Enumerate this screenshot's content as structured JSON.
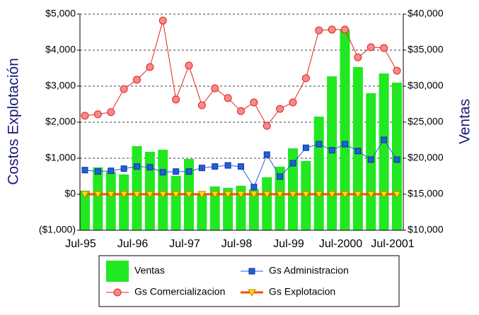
{
  "chart_data": {
    "type": "bar-line",
    "y_title": "Costos Explotación",
    "y2_title": "Ventas",
    "categories": [
      "Jul-95",
      null,
      null,
      null,
      "Jul-96",
      null,
      null,
      null,
      "Jul-97",
      null,
      null,
      null,
      "Jul-98",
      null,
      null,
      null,
      "Jul-99",
      null,
      null,
      null,
      "Jul-2000",
      null,
      null,
      null,
      "Jul-2001"
    ],
    "ylim": [
      -1000,
      5000
    ],
    "yticks": [
      {
        "value": -1000,
        "label": "($1,000)"
      },
      {
        "value": 0,
        "label": "$0"
      },
      {
        "value": 1000,
        "label": "$1,000"
      },
      {
        "value": 2000,
        "label": "$2,000"
      },
      {
        "value": 3000,
        "label": "$3,000"
      },
      {
        "value": 4000,
        "label": "$4,000"
      },
      {
        "value": 5000,
        "label": "$5,000"
      }
    ],
    "y2lim": [
      10000,
      40000
    ],
    "y2ticks": [
      {
        "value": 10000,
        "label": "$10,000"
      },
      {
        "value": 15000,
        "label": "$15,000"
      },
      {
        "value": 20000,
        "label": "$20,000"
      },
      {
        "value": 25000,
        "label": "$25,000"
      },
      {
        "value": 30000,
        "label": "$30,000"
      },
      {
        "value": 35000,
        "label": "$35,000"
      },
      {
        "value": 40000,
        "label": "$40,000"
      }
    ],
    "grid": true,
    "series": [
      {
        "name": "Ventas",
        "type": "bar",
        "axis": "y2",
        "color": "#22e822",
        "values": [
          15490,
          18730,
          18140,
          17750,
          21670,
          20880,
          21180,
          17550,
          19900,
          14900,
          16080,
          15880,
          16180,
          15690,
          17350,
          18820,
          21370,
          19610,
          25780,
          31370,
          37840,
          32650,
          29020,
          31770,
          30490
        ]
      },
      {
        "name": "Gs Administracion",
        "type": "line",
        "marker": "square",
        "color": "#1f5fd8",
        "marker_color": "#1f5fd8",
        "values": [
          670,
          630,
          650,
          710,
          770,
          750,
          610,
          630,
          630,
          730,
          770,
          800,
          770,
          200,
          1100,
          490,
          860,
          1290,
          1390,
          1220,
          1390,
          1200,
          960,
          1510,
          960
        ]
      },
      {
        "name": "Gs Comercializacion",
        "type": "line",
        "marker": "circle",
        "color": "#e82020",
        "marker_color": "#f48a8a",
        "values": [
          2180,
          2220,
          2280,
          2920,
          3180,
          3530,
          4820,
          2630,
          3570,
          2470,
          2940,
          2670,
          2310,
          2550,
          1900,
          2370,
          2550,
          3220,
          4550,
          4570,
          4570,
          3800,
          4080,
          4060,
          3430
        ]
      },
      {
        "name": "Gs Explotacion",
        "type": "line",
        "marker": "triangle",
        "color": "#ff4a00",
        "marker_color": "#ffe000",
        "values": [
          0,
          0,
          0,
          0,
          0,
          0,
          0,
          0,
          0,
          0,
          0,
          0,
          0,
          0,
          0,
          0,
          0,
          0,
          0,
          0,
          0,
          0,
          0,
          0,
          0
        ]
      }
    ]
  }
}
